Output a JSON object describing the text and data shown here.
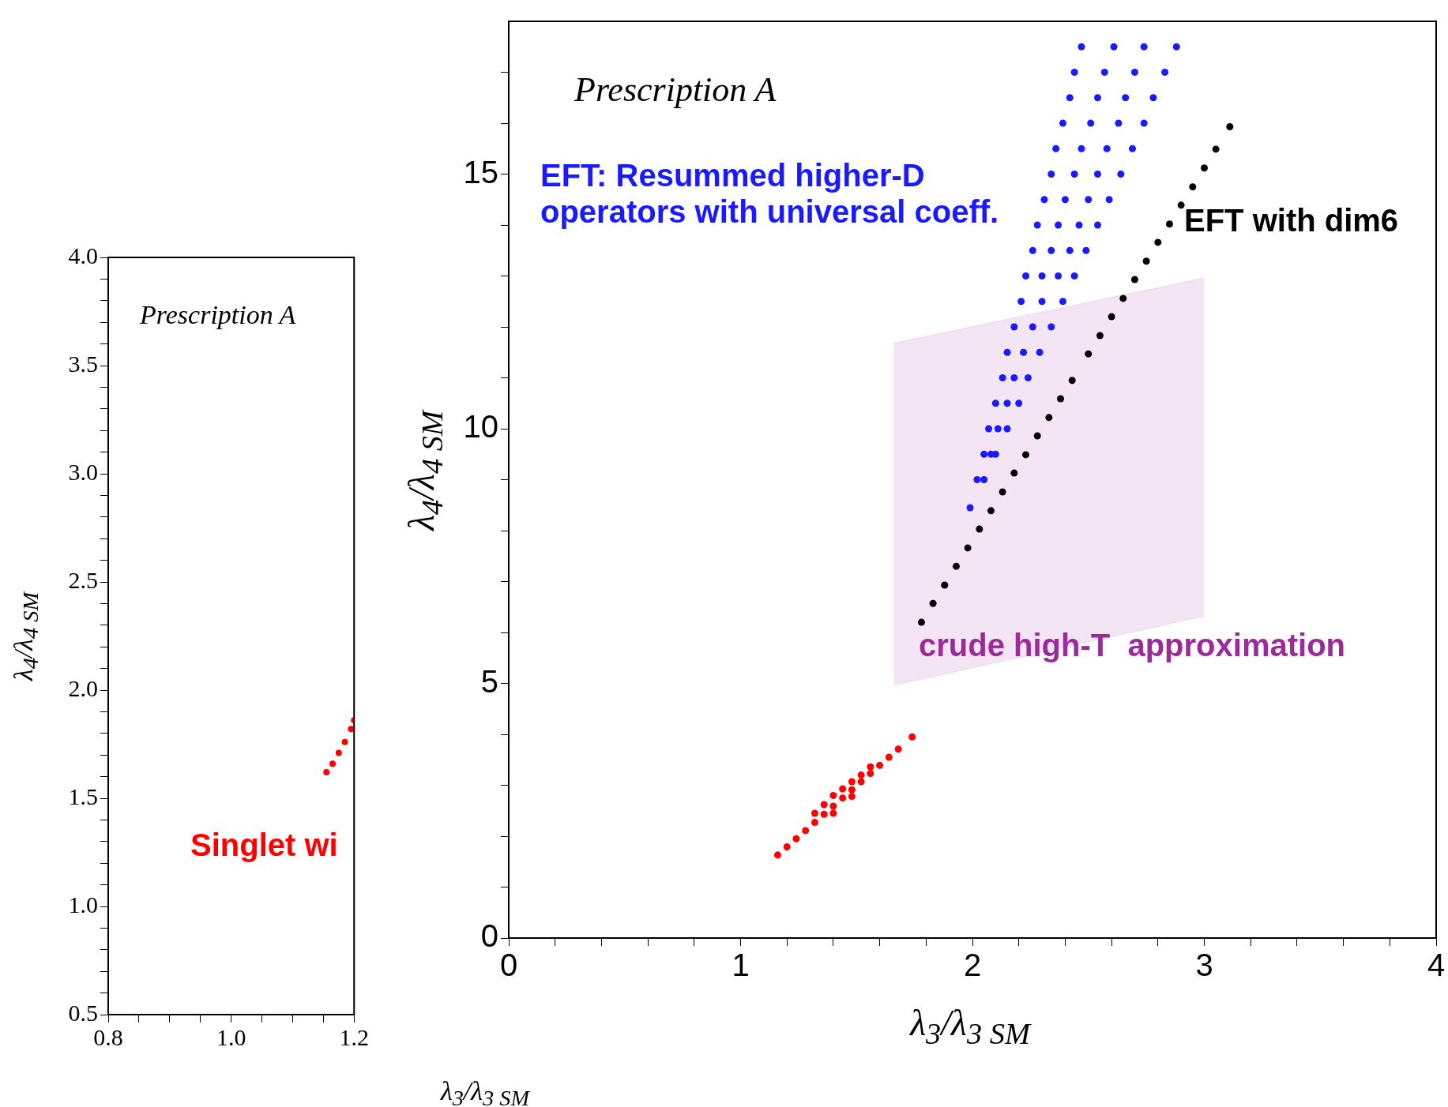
{
  "chart_data": [
    {
      "type": "scatter",
      "xlabel": "λ$_{3}$/λ$_{3 SM}$",
      "ylabel": "λ$_{4}$/λ$_{4 SM}$",
      "marker": "circle",
      "xlim": [
        0.8,
        1.2
      ],
      "xticks": [
        0.8,
        {
          "value": 0.85,
          "label": null
        },
        {
          "value": 0.9,
          "label": null
        },
        {
          "value": 0.95,
          "label": null
        },
        {
          "value": 1,
          "label": "1.0"
        },
        {
          "value": 1.05,
          "label": null
        },
        {
          "value": 1.1,
          "label": null
        },
        {
          "value": 1.15,
          "label": null
        },
        1.2
      ],
      "ylim": [
        0.5,
        4.0
      ],
      "yticks": [
        0.5,
        {
          "value": 0.6,
          "label": null
        },
        {
          "value": 0.7,
          "label": null
        },
        {
          "value": 0.8,
          "label": null
        },
        {
          "value": 0.9,
          "label": null
        },
        {
          "value": 1,
          "label": "1.0"
        },
        {
          "value": 1.1,
          "label": null
        },
        {
          "value": 1.2,
          "label": null
        },
        {
          "value": 1.3,
          "label": null
        },
        {
          "value": 1.4,
          "label": null
        },
        1.5,
        {
          "value": 1.6,
          "label": null
        },
        {
          "value": 1.7,
          "label": null
        },
        {
          "value": 1.8,
          "label": null
        },
        {
          "value": 1.9,
          "label": null
        },
        {
          "value": 2,
          "label": "2.0"
        },
        {
          "value": 2.1,
          "label": null
        },
        {
          "value": 2.2,
          "label": null
        },
        {
          "value": 2.3,
          "label": null
        },
        {
          "value": 2.4,
          "label": null
        },
        2.5,
        {
          "value": 2.6,
          "label": null
        },
        {
          "value": 2.7,
          "label": null
        },
        {
          "value": 2.8,
          "label": null
        },
        {
          "value": 2.9,
          "label": null
        },
        {
          "value": 3,
          "label": "3.0"
        },
        {
          "value": 3.1,
          "label": null
        },
        {
          "value": 3.2,
          "label": null
        },
        {
          "value": 3.3,
          "label": null
        },
        {
          "value": 3.4,
          "label": null
        },
        3.5,
        {
          "value": 3.6,
          "label": null
        },
        {
          "value": 3.7,
          "label": null
        },
        {
          "value": 3.8,
          "label": null
        },
        {
          "value": 3.9,
          "label": null
        },
        {
          "value": 4,
          "label": "4.0"
        }
      ],
      "annotations": [
        "Prescription A"
      ],
      "series": [
        {
          "type": "scatter",
          "name": "Singlet wi",
          "color": "#ff0000",
          "x": [
            1.155,
            1.165,
            1.175,
            1.185,
            1.195,
            1.2
          ],
          "values": [
            1.62,
            1.66,
            1.71,
            1.76,
            1.82,
            1.86
          ]
        }
      ]
    },
    {
      "type": "scatter",
      "xlabel": "λ$_{3}$/λ$_{3 SM}$",
      "ylabel": "λ$_{4}$/λ$_{4 SM}$",
      "marker": "circle",
      "xlim": [
        0,
        4
      ],
      "xticks": [
        0,
        {
          "value": 0.2,
          "label": null
        },
        {
          "value": 0.4,
          "label": null
        },
        {
          "value": 0.6,
          "label": null
        },
        {
          "value": 0.8,
          "label": null
        },
        1,
        {
          "value": 1.2,
          "label": null
        },
        {
          "value": 1.4,
          "label": null
        },
        {
          "value": 1.6,
          "label": null
        },
        {
          "value": 1.8,
          "label": null
        },
        2,
        {
          "value": 2.2,
          "label": null
        },
        {
          "value": 2.4,
          "label": null
        },
        {
          "value": 2.6,
          "label": null
        },
        {
          "value": 2.8,
          "label": null
        },
        3,
        {
          "value": 3.2,
          "label": null
        },
        {
          "value": 3.4,
          "label": null
        },
        {
          "value": 3.6,
          "label": null
        },
        {
          "value": 3.8,
          "label": null
        },
        4
      ],
      "ylim": [
        0,
        18
      ],
      "yticks": [
        0,
        {
          "value": 1,
          "label": null
        },
        {
          "value": 2,
          "label": null
        },
        {
          "value": 3,
          "label": null
        },
        {
          "value": 4,
          "label": null
        },
        5,
        {
          "value": 6,
          "label": null
        },
        {
          "value": 7,
          "label": null
        },
        {
          "value": 8,
          "label": null
        },
        {
          "value": 9,
          "label": null
        },
        10,
        {
          "value": 11,
          "label": null
        },
        {
          "value": 12,
          "label": null
        },
        {
          "value": 13,
          "label": null
        },
        {
          "value": 14,
          "label": null
        },
        15,
        {
          "value": 16,
          "label": null
        },
        {
          "value": 17,
          "label": null
        }
      ],
      "annotations": [
        "Prescription A"
      ],
      "series": [
        {
          "type": "scatter",
          "name": "EFT: Resummed higher-D\noperators with universal coeff.",
          "color": "#1a1aff",
          "x": [
            1.99,
            2.02,
            2.05,
            2.05,
            2.08,
            2.1,
            2.07,
            2.11,
            2.15,
            2.1,
            2.15,
            2.2,
            2.13,
            2.18,
            2.24,
            2.15,
            2.22,
            2.29,
            2.18,
            2.26,
            2.34,
            2.21,
            2.3,
            2.39,
            2.23,
            2.3,
            2.37,
            2.44,
            2.26,
            2.34,
            2.42,
            2.49,
            2.28,
            2.37,
            2.46,
            2.54,
            2.31,
            2.4,
            2.5,
            2.59,
            2.34,
            2.44,
            2.54,
            2.64,
            2.36,
            2.47,
            2.58,
            2.69,
            2.39,
            2.51,
            2.63,
            2.74,
            2.42,
            2.54,
            2.66,
            2.78,
            2.44,
            2.57,
            2.7,
            2.83,
            2.47,
            2.61,
            2.74,
            2.88
          ],
          "values": [
            8.45,
            9,
            9,
            9.5,
            9.5,
            9.5,
            10,
            10,
            10,
            10.5,
            10.5,
            10.5,
            11,
            11,
            11,
            11.5,
            11.5,
            11.5,
            12,
            12,
            12,
            12.5,
            12.5,
            12.5,
            13,
            13,
            13,
            13,
            13.5,
            13.5,
            13.5,
            13.5,
            14,
            14,
            14,
            14,
            14.5,
            14.5,
            14.5,
            14.5,
            15,
            15,
            15,
            15,
            15.5,
            15.5,
            15.5,
            15.5,
            16,
            16,
            16,
            16,
            16.5,
            16.5,
            16.5,
            16.5,
            17,
            17,
            17,
            17,
            17.5,
            17.5,
            17.5,
            17.5
          ]
        },
        {
          "type": "scatter",
          "name": "EFT with dim6",
          "color": "#000000",
          "x": [
            1.78,
            1.83,
            1.88,
            1.93,
            1.98,
            2.03,
            2.08,
            2.13,
            2.18,
            2.23,
            2.28,
            2.33,
            2.38,
            2.43,
            2.5,
            2.55,
            2.6,
            2.65,
            2.7,
            2.75,
            2.8,
            2.85,
            2.9,
            2.95,
            3.0,
            3.05,
            3.11
          ],
          "values": [
            6.2,
            6.57,
            6.93,
            7.3,
            7.66,
            8.03,
            8.39,
            8.76,
            9.13,
            9.49,
            9.86,
            10.22,
            10.59,
            10.95,
            11.47,
            11.83,
            12.2,
            12.56,
            12.93,
            13.29,
            13.66,
            14.02,
            14.39,
            14.75,
            15.12,
            15.49,
            15.93
          ]
        },
        {
          "type": "area",
          "name": "crude high-T  approximation",
          "color": "#9b2a9b",
          "marker": "none",
          "x": [
            1.66,
            3.0
          ],
          "values": [
            null,
            null
          ],
          "lower": [
            4.96,
            6.32
          ],
          "upper": [
            11.68,
            12.96
          ]
        },
        {
          "type": "scatter",
          "color": "#ff0000",
          "x": [
            1.16,
            1.2,
            1.24,
            1.28,
            1.32,
            1.36,
            1.4,
            1.44,
            1.48,
            1.52,
            1.56,
            1.6,
            1.64,
            1.68,
            1.74,
            1.32,
            1.36,
            1.4,
            1.44,
            1.48,
            1.52,
            1.56,
            1.4,
            1.48
          ],
          "values": [
            1.63,
            1.79,
            1.95,
            2.11,
            2.27,
            2.43,
            2.59,
            2.75,
            2.91,
            3.07,
            3.23,
            3.39,
            3.55,
            3.71,
            3.95,
            2.45,
            2.62,
            2.8,
            2.93,
            3.07,
            3.2,
            3.36,
            2.45,
            2.78
          ]
        }
      ]
    }
  ]
}
